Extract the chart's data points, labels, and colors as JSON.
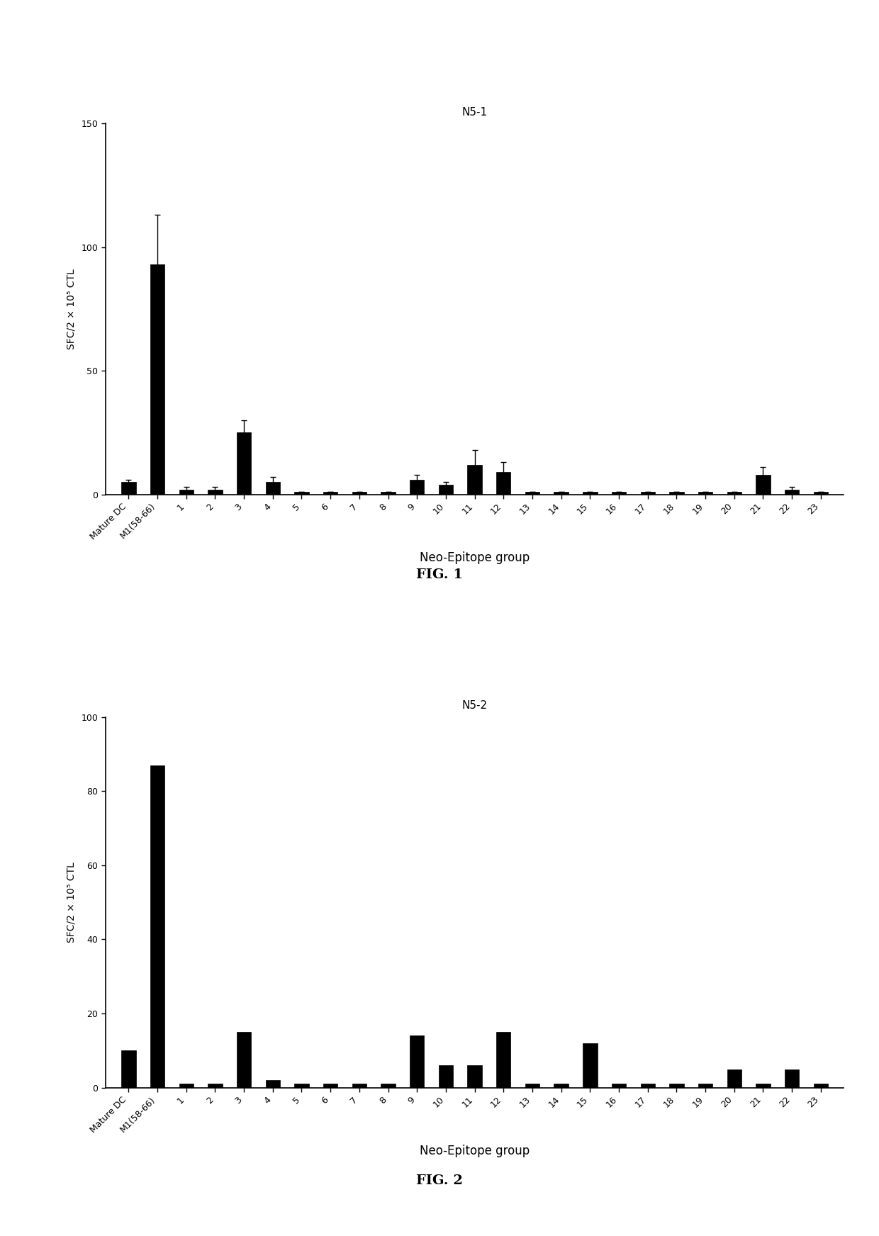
{
  "fig1": {
    "title": "N5-1",
    "ylabel": "SFC/2 × 10⁵ CTL",
    "xlabel": "Neo-Epitope group",
    "ylim": [
      0,
      150
    ],
    "yticks": [
      0,
      50,
      100,
      150
    ],
    "categories": [
      "Mature DC",
      "M1(58-66)",
      "1",
      "2",
      "3",
      "4",
      "5",
      "6",
      "7",
      "8",
      "9",
      "10",
      "11",
      "12",
      "13",
      "14",
      "15",
      "16",
      "17",
      "18",
      "19",
      "20",
      "21",
      "22",
      "23"
    ],
    "values": [
      5,
      93,
      2,
      2,
      25,
      5,
      1,
      1,
      1,
      1,
      6,
      4,
      12,
      9,
      1,
      1,
      1,
      1,
      1,
      1,
      1,
      1,
      8,
      2,
      1
    ],
    "errors": [
      1,
      20,
      1,
      1,
      5,
      2,
      0,
      0,
      0,
      0,
      2,
      1,
      6,
      4,
      0,
      0,
      0,
      0,
      0,
      0,
      0,
      0,
      3,
      1,
      0
    ],
    "bar_color": "#000000",
    "fig_label": "FIG. 1"
  },
  "fig2": {
    "title": "N5-2",
    "ylabel": "SFC/2 × 10⁵ CTL",
    "xlabel": "Neo-Epitope group",
    "ylim": [
      0,
      100
    ],
    "yticks": [
      0,
      20,
      40,
      60,
      80,
      100
    ],
    "categories": [
      "Mature DC",
      "M1(58-66)",
      "1",
      "2",
      "3",
      "4",
      "5",
      "6",
      "7",
      "8",
      "9",
      "10",
      "11",
      "12",
      "13",
      "14",
      "15",
      "16",
      "17",
      "18",
      "19",
      "20",
      "21",
      "22",
      "23"
    ],
    "values": [
      10,
      87,
      1,
      1,
      15,
      2,
      1,
      1,
      1,
      1,
      14,
      6,
      6,
      15,
      1,
      1,
      12,
      1,
      1,
      1,
      1,
      5,
      1,
      5,
      1
    ],
    "errors": [
      0,
      0,
      0,
      0,
      0,
      0,
      0,
      0,
      0,
      0,
      0,
      0,
      0,
      0,
      0,
      0,
      0,
      0,
      0,
      0,
      0,
      0,
      0,
      0,
      0
    ],
    "bar_color": "#000000",
    "fig_label": "FIG. 2"
  },
  "background_color": "#ffffff",
  "font_color": "#000000"
}
